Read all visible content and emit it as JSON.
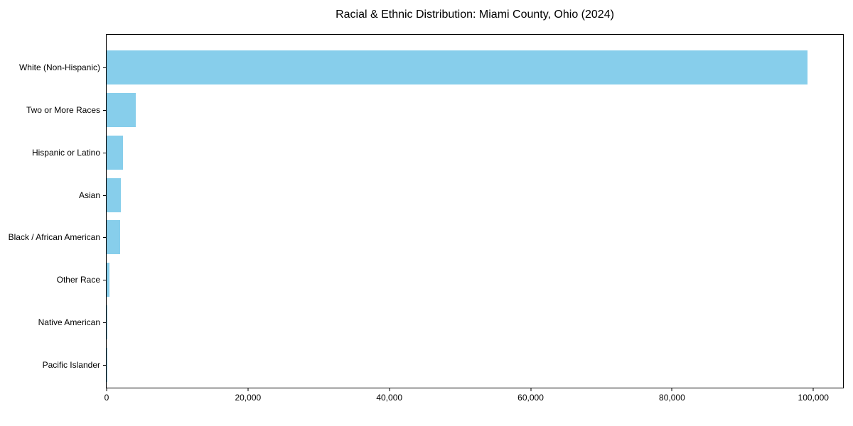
{
  "chart_data": {
    "type": "bar",
    "orientation": "horizontal",
    "title": "Racial & Ethnic Distribution: Miami County, Ohio (2024)",
    "categories": [
      "White (Non-Hispanic)",
      "Two or More Races",
      "Hispanic or Latino",
      "Asian",
      "Black / African American",
      "Other Race",
      "Native American",
      "Pacific Islander"
    ],
    "values": [
      99200,
      4100,
      2280,
      2040,
      1940,
      430,
      120,
      30
    ],
    "xlabel": "",
    "ylabel": "",
    "xlim": [
      0,
      104200
    ],
    "xticks": {
      "values": [
        0,
        20000,
        40000,
        60000,
        80000,
        100000
      ],
      "labels": [
        "0",
        "20,000",
        "40,000",
        "60,000",
        "80,000",
        "100,000"
      ]
    },
    "bar_color": "#87CEEB",
    "grid": false,
    "legend": null,
    "background_color": "#ffffff",
    "text_color": "#000000"
  }
}
